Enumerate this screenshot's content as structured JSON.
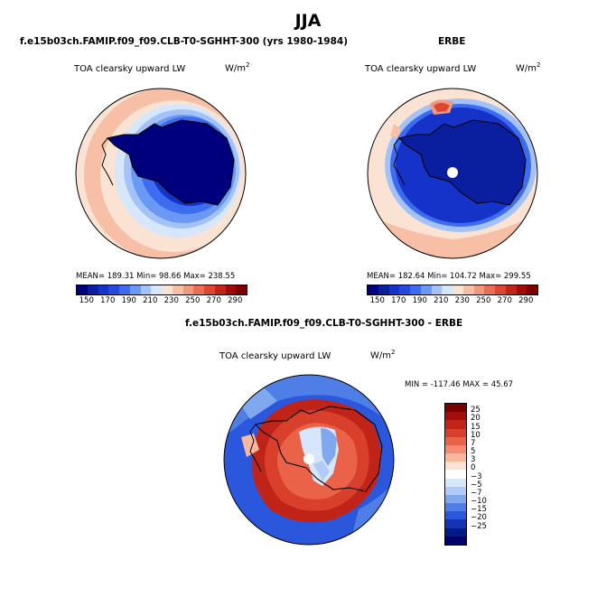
{
  "title": "JJA",
  "panels": {
    "model": {
      "title": "f.e15b03ch.FAMIP.f09_f09.CLB-T0-SGHHT-300 (yrs 1980-1984)",
      "variable": "TOA clearsky upward LW",
      "units": "W/m",
      "units_exp": "2",
      "stats": "MEAN= 189.31   Min=  98.66   Max= 238.55"
    },
    "obs": {
      "title": "ERBE",
      "variable": "TOA clearsky upward LW",
      "units": "W/m",
      "units_exp": "2",
      "stats": "MEAN= 182.64   Min= 104.72   Max= 299.55"
    },
    "diff": {
      "title": "f.e15b03ch.FAMIP.f09_f09.CLB-T0-SGHHT-300 - ERBE",
      "variable": "TOA clearsky upward LW",
      "units": "W/m",
      "units_exp": "2",
      "stats": "MIN = -117.46  MAX =  45.67"
    }
  },
  "colorbar_main": {
    "colors": [
      "#00007f",
      "#0a1fa0",
      "#1533c8",
      "#2549e0",
      "#3d6cf0",
      "#6a98f5",
      "#a3c3f8",
      "#d6e6fb",
      "#fbe3d4",
      "#f7c0a6",
      "#f09a7d",
      "#e86f55",
      "#dc4632",
      "#c42418",
      "#a00a08",
      "#7a0000"
    ],
    "ticks": [
      "150",
      "170",
      "190",
      "210",
      "230",
      "250",
      "270",
      "290"
    ]
  },
  "colorbar_diff": {
    "colors": [
      "#7a0000",
      "#a30e0a",
      "#c02418",
      "#d8402c",
      "#ea6248",
      "#f58b70",
      "#f9b79e",
      "#fde2d3",
      "#ffffff",
      "#d7e6fb",
      "#b0cbf5",
      "#80a8ee",
      "#4f7fe6",
      "#2a57dc",
      "#1434b4",
      "#061a86",
      "#00006a"
    ],
    "ticks": [
      "25",
      "20",
      "15",
      "10",
      "7",
      "5",
      "3",
      "0",
      "−3",
      "−5",
      "−7",
      "−10",
      "−15",
      "−20",
      "−25"
    ]
  }
}
